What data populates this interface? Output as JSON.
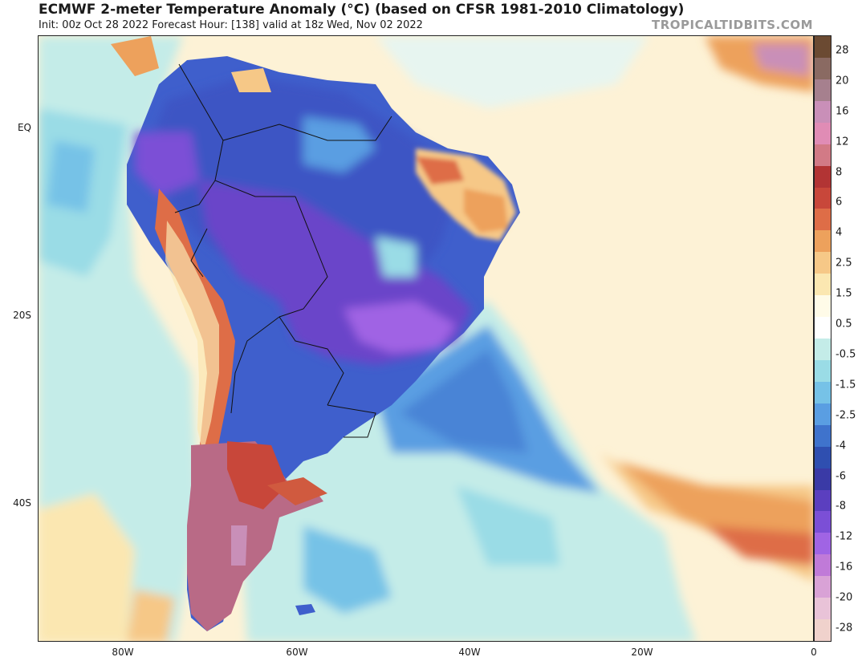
{
  "header": {
    "title": "ECMWF 2-meter Temperature Anomaly (°C) (based on CFSR 1981-2010 Climatology)",
    "subtitle": "Init: 00z Oct 28 2022   Forecast Hour: [138]   valid at 18z Wed, Nov 02 2022",
    "brand": "TROPICALTIDBITS.COM"
  },
  "axes": {
    "lat_labels": [
      "EQ",
      "20S",
      "40S"
    ],
    "lon_labels": [
      "80W",
      "60W",
      "40W",
      "20W",
      "0"
    ]
  },
  "colorbar": {
    "labels": [
      "28",
      "20",
      "16",
      "12",
      "8",
      "6",
      "4",
      "2.5",
      "1.5",
      "0.5",
      "-0.5",
      "-1.5",
      "-2.5",
      "-4",
      "-6",
      "-8",
      "-12",
      "-16",
      "-20",
      "-28"
    ],
    "colors": [
      "#6b4a32",
      "#8a6a62",
      "#a6808e",
      "#c98fb8",
      "#e08cb5",
      "#d27a86",
      "#b23434",
      "#c8473a",
      "#de6d47",
      "#eda15c",
      "#f6c887",
      "#fbe7b1",
      "#fffbe8",
      "#ffffff",
      "#c4ece8",
      "#9adce6",
      "#76c2e7",
      "#5a9ee2",
      "#3f73cc",
      "#2f4fb0",
      "#3a3aa6",
      "#5b3fbf",
      "#7b4fd6",
      "#a064e4",
      "#c07ad8",
      "#d9a2d6",
      "#e9c3d8",
      "#f0d2cc"
    ]
  },
  "map": {
    "palette": {
      "ocean_warm": "#fdf2d6",
      "ocean_light": "#fbe7b1",
      "ocean_cool": "#c4ece8",
      "ocean_cold": "#9adce6",
      "cold_blue": "#5a9ee2",
      "land_blue": "#3f5fcc",
      "land_purple": "#6a45c9",
      "land_violet": "#9a5be0",
      "warm_orange": "#eda15c",
      "warm_red": "#d05a3f",
      "patagonia": "#b96a86"
    }
  }
}
